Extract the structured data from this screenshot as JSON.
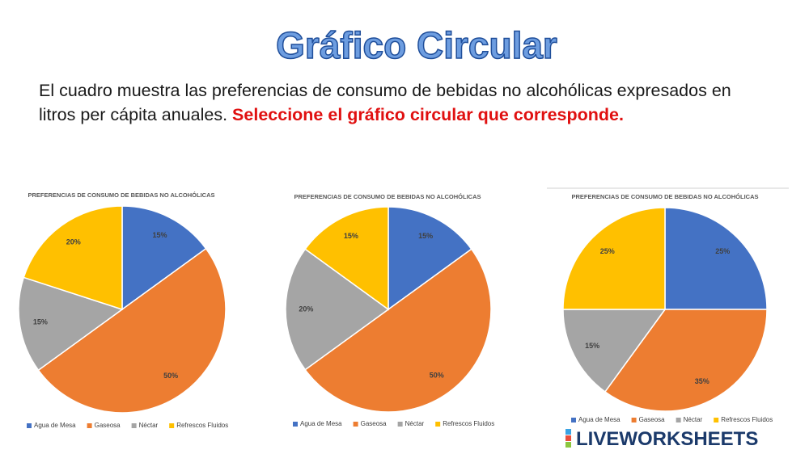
{
  "header": {
    "title": "Gráfico Circular"
  },
  "instructions": {
    "text": "El cuadro muestra las preferencias de consumo de bebidas no alcohólicas expresados en litros per cápita anuales.",
    "highlight": "Seleccione el  gráfico circular que corresponde."
  },
  "chart_data": [
    {
      "type": "pie",
      "title": "PREFERENCIAS DE CONSUMO DE BEBIDAS NO ALCOHÓLICAS",
      "categories": [
        "Agua de Mesa",
        "Gaseosa",
        "Néctar",
        "Refrescos Fluidos"
      ],
      "values": [
        15,
        50,
        15,
        20
      ],
      "value_labels": [
        "15%",
        "50%",
        "15%",
        "20%"
      ],
      "colors": [
        "#4472c4",
        "#ed7d31",
        "#a5a5a5",
        "#ffc000"
      ],
      "legend": "bottom"
    },
    {
      "type": "pie",
      "title": "PREFERENCIAS DE CONSUMO DE BEBIDAS NO ALCOHÓLICAS",
      "categories": [
        "Agua de Mesa",
        "Gaseosa",
        "Néctar",
        "Refrescos Fluidos"
      ],
      "values": [
        15,
        50,
        20,
        15
      ],
      "value_labels": [
        "15%",
        "50%",
        "20%",
        "15%"
      ],
      "colors": [
        "#4472c4",
        "#ed7d31",
        "#a5a5a5",
        "#ffc000"
      ],
      "legend": "bottom"
    },
    {
      "type": "pie",
      "title": "PREFERENCIAS DE CONSUMO DE BEBIDAS NO ALCOHÓLICAS",
      "categories": [
        "Agua de Mesa",
        "Gaseosa",
        "Néctar",
        "Refrescos Fluidos"
      ],
      "values": [
        25,
        35,
        15,
        25
      ],
      "value_labels": [
        "25%",
        "35%",
        "15%",
        "25%"
      ],
      "colors": [
        "#4472c4",
        "#ed7d31",
        "#a5a5a5",
        "#ffc000"
      ],
      "legend": "bottom"
    }
  ],
  "footer": {
    "logo": "LIVEWORKSHEETS"
  }
}
